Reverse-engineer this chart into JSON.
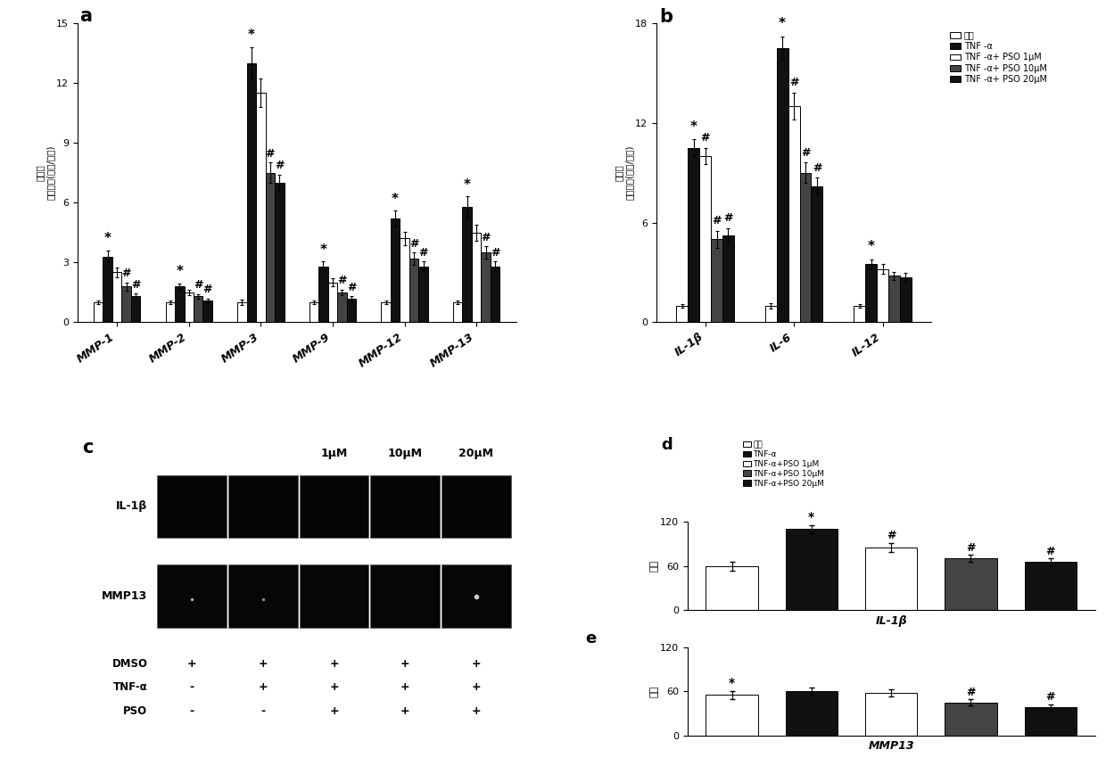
{
  "panel_a": {
    "categories": [
      "MMP-1",
      "MMP-2",
      "MMP-3",
      "MMP-9",
      "MMP-12",
      "MMP-13"
    ],
    "ylim": [
      0,
      15
    ],
    "yticks": [
      0,
      3,
      6,
      9,
      12,
      15
    ],
    "ylabel": "相对量\n（倍数）(目标/对照)",
    "groups": {
      "ctrl": [
        1.0,
        1.0,
        1.0,
        1.0,
        1.0,
        1.0
      ],
      "tnf": [
        3.3,
        1.8,
        13.0,
        2.8,
        5.2,
        5.8
      ],
      "pso1": [
        2.5,
        1.5,
        11.5,
        2.0,
        4.2,
        4.5
      ],
      "pso10": [
        1.8,
        1.3,
        7.5,
        1.5,
        3.2,
        3.5
      ],
      "pso20": [
        1.3,
        1.1,
        7.0,
        1.2,
        2.8,
        2.8
      ]
    },
    "errors": {
      "ctrl": [
        0.1,
        0.1,
        0.15,
        0.1,
        0.1,
        0.1
      ],
      "tnf": [
        0.3,
        0.15,
        0.8,
        0.25,
        0.4,
        0.5
      ],
      "pso1": [
        0.25,
        0.15,
        0.7,
        0.2,
        0.35,
        0.4
      ],
      "pso10": [
        0.2,
        0.12,
        0.5,
        0.15,
        0.3,
        0.3
      ],
      "pso20": [
        0.15,
        0.1,
        0.4,
        0.1,
        0.25,
        0.25
      ]
    }
  },
  "panel_b": {
    "categories": [
      "IL-1β",
      "IL-6",
      "IL-12"
    ],
    "ylim": [
      0,
      18
    ],
    "yticks": [
      0,
      6,
      12,
      18
    ],
    "ylabel": "相对量\n（倍数）(目标/对照)",
    "groups": {
      "ctrl": [
        1.0,
        1.0,
        1.0
      ],
      "tnf": [
        10.5,
        16.5,
        3.5
      ],
      "pso1": [
        10.0,
        13.0,
        3.2
      ],
      "pso10": [
        5.0,
        9.0,
        2.8
      ],
      "pso20": [
        5.2,
        8.2,
        2.7
      ]
    },
    "errors": {
      "ctrl": [
        0.1,
        0.15,
        0.1
      ],
      "tnf": [
        0.5,
        0.7,
        0.3
      ],
      "pso1": [
        0.5,
        0.8,
        0.3
      ],
      "pso10": [
        0.5,
        0.6,
        0.25
      ],
      "pso20": [
        0.45,
        0.5,
        0.25
      ]
    }
  },
  "panel_d": {
    "ylabel": "强度",
    "ylim": [
      0,
      120
    ],
    "yticks": [
      0,
      60,
      120
    ],
    "xlabel": "IL-1β",
    "values": [
      60,
      110,
      85,
      70,
      65
    ],
    "errors": [
      6,
      5,
      6,
      5,
      5
    ]
  },
  "panel_e": {
    "ylabel": "强度",
    "ylim": [
      0,
      120
    ],
    "yticks": [
      0,
      60,
      120
    ],
    "xlabel": "MMP13",
    "values": [
      55,
      60,
      58,
      45,
      38
    ],
    "errors": [
      5,
      5,
      5,
      4,
      4
    ]
  },
  "colors": {
    "ctrl": "#ffffff",
    "tnf": "#111111",
    "pso1": "#ffffff",
    "pso10": "#444444",
    "pso20": "#111111"
  },
  "edgecolor": "#000000",
  "legend_labels_b": [
    "对照",
    "TNF -α",
    "TNF -α+ PSO 1μM",
    "TNF -α+ PSO 10μM",
    "TNF -α+ PSO 20μM"
  ],
  "legend_labels_de": [
    "对照",
    "TNF-α",
    "TNF-α+PSO 1μM",
    "TNF-α+PSO 10μM",
    "TNF-α+PSO 20μM"
  ],
  "panel_c": {
    "dmso": [
      "+",
      "+",
      "+",
      "+",
      "+"
    ],
    "tnfa": [
      "-",
      "+",
      "+",
      "+",
      "+"
    ],
    "pso": [
      "-",
      "-",
      "+",
      "+",
      "+"
    ]
  }
}
